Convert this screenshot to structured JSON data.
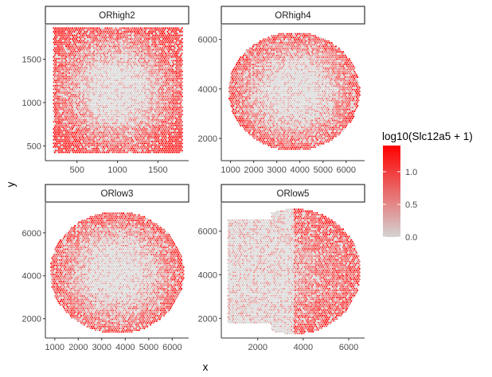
{
  "chart_data": {
    "type": "scatter",
    "xlabel": "x",
    "ylabel": "y",
    "legend": {
      "title": "log10(Slc12a5 + 1)",
      "position": "right",
      "ticks": [
        0.0,
        0.5,
        1.0
      ],
      "tick_labels": [
        "0.0",
        "0.5",
        "1.0"
      ],
      "range": [
        0,
        1.4
      ],
      "low_color": "#d3d3d3",
      "high_color": "#ff0000"
    },
    "grid": false,
    "panels": [
      {
        "name": "ORhigh2",
        "xlim": [
          110,
          1880
        ],
        "ylim": [
          330,
          1900
        ],
        "xticks": [
          500,
          1000,
          1500
        ],
        "xtick_labels": [
          "500",
          "1000",
          "1500"
        ],
        "yticks": [
          500,
          1000,
          1500
        ],
        "ytick_labels": [
          "500",
          "1000",
          "1500"
        ],
        "tissue_x": [
          200,
          1800
        ],
        "tissue_y": [
          420,
          1880
        ]
      },
      {
        "name": "ORhigh4",
        "xlim": [
          600,
          6800
        ],
        "ylim": [
          1100,
          6600
        ],
        "xticks": [
          1000,
          2000,
          3000,
          4000,
          5000,
          6000
        ],
        "xtick_labels": [
          "1000",
          "2000",
          "3000",
          "4000",
          "5000",
          "6000"
        ],
        "yticks": [
          2000,
          4000,
          6000
        ],
        "ytick_labels": [
          "2000",
          "4000",
          "6000"
        ],
        "tissue_x": [
          900,
          6600
        ],
        "tissue_y": [
          1500,
          6300
        ]
      },
      {
        "name": "ORlow3",
        "xlim": [
          600,
          6700
        ],
        "ylim": [
          1100,
          7400
        ],
        "xticks": [
          1000,
          2000,
          3000,
          4000,
          5000,
          6000
        ],
        "xtick_labels": [
          "1000",
          "2000",
          "3000",
          "4000",
          "5000",
          "6000"
        ],
        "yticks": [
          2000,
          4000,
          6000
        ],
        "ytick_labels": [
          "2000",
          "4000",
          "6000"
        ],
        "tissue_x": [
          800,
          6500
        ],
        "tissue_y": [
          1300,
          7000
        ]
      },
      {
        "name": "ORlow5",
        "xlim": [
          400,
          6700
        ],
        "ylim": [
          1100,
          7300
        ],
        "xticks": [
          2000,
          4000,
          6000
        ],
        "xtick_labels": [
          "2000",
          "4000",
          "6000"
        ],
        "yticks": [
          2000,
          4000,
          6000
        ],
        "ytick_labels": [
          "2000",
          "4000",
          "6000"
        ],
        "tissue_x": [
          700,
          6500
        ],
        "tissue_y": [
          1300,
          7000
        ]
      }
    ]
  }
}
